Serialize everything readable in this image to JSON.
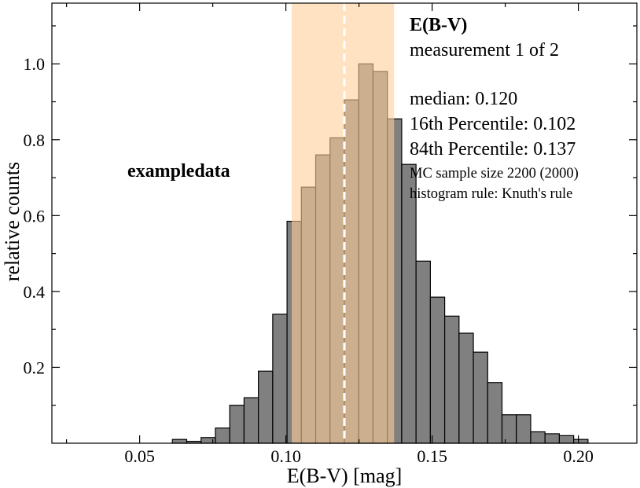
{
  "chart_data": {
    "type": "bar",
    "title": "E(B-V)",
    "subtitle": "measurement 1 of 2",
    "xlabel": "E(B-V) [mag]",
    "ylabel": "relative counts",
    "xlim": [
      0.02,
      0.22
    ],
    "ylim": [
      0.0,
      1.16
    ],
    "xticks": [
      0.05,
      0.1,
      0.15,
      0.2
    ],
    "xtick_labels": [
      "0.05",
      "0.10",
      "0.15",
      "0.20"
    ],
    "yticks": [
      0.2,
      0.4,
      0.6,
      0.8,
      1.0
    ],
    "ytick_labels": [
      "0.2",
      "0.4",
      "0.6",
      "0.8",
      "1.0"
    ],
    "bin_width": 0.0049,
    "bin_edges_start": 0.0612,
    "values": [
      0.01,
      0.005,
      0.015,
      0.04,
      0.1,
      0.12,
      0.19,
      0.34,
      0.585,
      0.675,
      0.76,
      0.805,
      0.905,
      1.0,
      0.98,
      0.855,
      0.735,
      0.48,
      0.385,
      0.335,
      0.29,
      0.24,
      0.16,
      0.075,
      0.075,
      0.03,
      0.025,
      0.02,
      0.01
    ],
    "median": 0.12,
    "percentile_16": 0.102,
    "percentile_84": 0.137,
    "bar_color": "#808080",
    "band_color": "#ffcf9a",
    "median_line_color": "#ffffff",
    "annotation_label": "exampledata",
    "stats": {
      "median": "median: 0.120",
      "p16": "16th Percentile: 0.102",
      "p84": "84th Percentile: 0.137",
      "sample_size": "MC sample size 2200 (2000)",
      "histogram_rule": "histogram rule: Knuth's rule"
    }
  }
}
